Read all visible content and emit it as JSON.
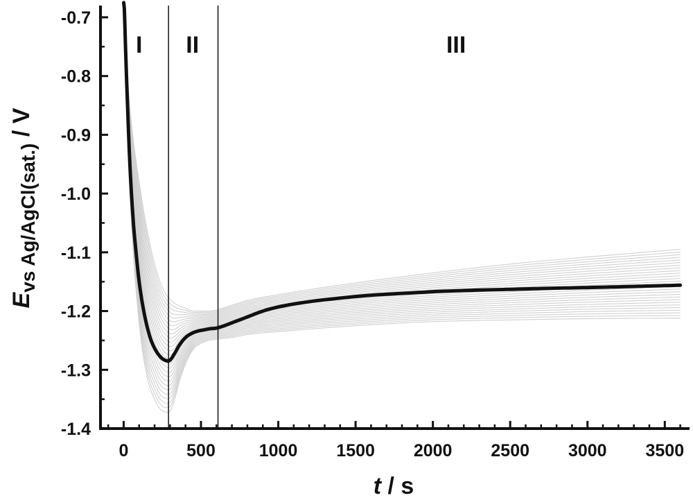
{
  "chart_data": {
    "type": "line",
    "title": "",
    "xlabel_italic": "t",
    "xlabel_rest": " / s",
    "ylabel_italic": "E",
    "ylabel_sub": "vs Ag/AgCl(sat.)",
    "ylabel_rest": "  / V",
    "xlim": [
      -150,
      3660
    ],
    "ylim": [
      -1.4,
      -0.68
    ],
    "x_ticks": [
      0,
      500,
      1000,
      1500,
      2000,
      2500,
      3000,
      3500
    ],
    "x_tick_labels": [
      "0",
      "500",
      "1000",
      "1500",
      "2000",
      "2500",
      "3000",
      "3500"
    ],
    "y_ticks": [
      -0.7,
      -0.8,
      -0.9,
      -1.0,
      -1.1,
      -1.2,
      -1.3,
      -1.4
    ],
    "y_tick_labels": [
      "-0.7",
      "-0.8",
      "-0.9",
      "-1.0",
      "-1.1",
      "-1.2",
      "-1.3",
      "-1.4"
    ],
    "grid": false,
    "regions": [
      {
        "label": "I",
        "x": 100
      },
      {
        "label": "II",
        "x": 445
      },
      {
        "label": "III",
        "x": 2150
      }
    ],
    "region_boundaries": [
      290,
      610
    ],
    "series": [
      {
        "role": "mean",
        "color": "#111111",
        "x": [
          0,
          5,
          12,
          25,
          40,
          60,
          80,
          100,
          130,
          160,
          190,
          220,
          250,
          270,
          290,
          305,
          330,
          360,
          400,
          440,
          480,
          520,
          560,
          600,
          650,
          700,
          800,
          900,
          1000,
          1200,
          1400,
          1600,
          1800,
          2000,
          2200,
          2500,
          2800,
          3000,
          3300,
          3600
        ],
        "y": [
          -0.675,
          -0.69,
          -0.75,
          -0.85,
          -0.95,
          -1.04,
          -1.1,
          -1.15,
          -1.2,
          -1.235,
          -1.258,
          -1.272,
          -1.281,
          -1.284,
          -1.285,
          -1.282,
          -1.272,
          -1.258,
          -1.245,
          -1.238,
          -1.234,
          -1.232,
          -1.23,
          -1.229,
          -1.225,
          -1.22,
          -1.21,
          -1.2,
          -1.193,
          -1.184,
          -1.178,
          -1.173,
          -1.17,
          -1.167,
          -1.165,
          -1.163,
          -1.161,
          -1.16,
          -1.158,
          -1.156
        ]
      },
      {
        "role": "envelope-upper",
        "color": "#cfcfcf",
        "x": [
          0,
          10,
          25,
          50,
          100,
          150,
          200,
          250,
          300,
          350,
          400,
          450,
          500,
          550,
          600,
          700,
          800,
          1000,
          1500,
          2000,
          2500,
          3000,
          3600
        ],
        "y": [
          -0.69,
          -0.74,
          -0.8,
          -0.88,
          -0.98,
          -1.06,
          -1.12,
          -1.16,
          -1.18,
          -1.19,
          -1.195,
          -1.2,
          -1.2,
          -1.2,
          -1.198,
          -1.19,
          -1.182,
          -1.172,
          -1.152,
          -1.135,
          -1.12,
          -1.108,
          -1.095
        ]
      },
      {
        "role": "envelope-lower",
        "color": "#cfcfcf",
        "x": [
          0,
          10,
          25,
          50,
          100,
          150,
          200,
          250,
          280,
          300,
          330,
          360,
          400,
          450,
          500,
          550,
          600,
          700,
          800,
          1000,
          1500,
          2000,
          2500,
          3000,
          3600
        ],
        "y": [
          -0.69,
          -0.76,
          -0.9,
          -1.05,
          -1.22,
          -1.31,
          -1.35,
          -1.37,
          -1.372,
          -1.37,
          -1.35,
          -1.32,
          -1.29,
          -1.265,
          -1.255,
          -1.25,
          -1.248,
          -1.245,
          -1.24,
          -1.235,
          -1.225,
          -1.218,
          -1.215,
          -1.213,
          -1.212
        ]
      }
    ]
  }
}
